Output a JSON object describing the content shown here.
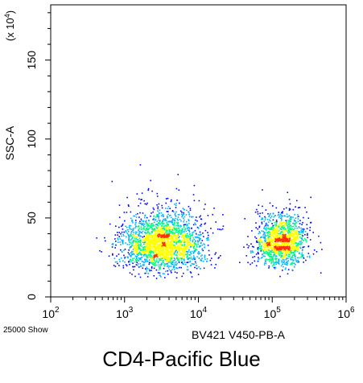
{
  "figure_caption": "CD4-Pacific Blue",
  "event_count_label": "25000 Show",
  "chart_data": {
    "type": "scatter",
    "subtype": "flow-cytometry density dot plot",
    "title": "",
    "xlabel": "BV421 V450-PB-A",
    "ylabel": "SSC-A",
    "y_multiplier_label": "(x 10",
    "y_multiplier_exponent": "4",
    "y_multiplier_close": ")",
    "x_scale": "log",
    "xlim": [
      100,
      1000000
    ],
    "x_ticks": [
      {
        "value": 100,
        "base": "10",
        "exp": "2"
      },
      {
        "value": 1000,
        "base": "10",
        "exp": "3"
      },
      {
        "value": 10000,
        "base": "10",
        "exp": "4"
      },
      {
        "value": 100000,
        "base": "10",
        "exp": "5"
      },
      {
        "value": 1000000,
        "base": "10",
        "exp": "6"
      }
    ],
    "y_scale": "linear",
    "ylim": [
      0,
      185
    ],
    "y_ticks": [
      {
        "value": 0,
        "label": "0"
      },
      {
        "value": 50,
        "label": "50"
      },
      {
        "value": 100,
        "label": "100"
      },
      {
        "value": 150,
        "label": "150"
      }
    ],
    "grid": false,
    "color_scale": [
      "#0000ff",
      "#00b4ff",
      "#00ff80",
      "#ffff00",
      "#ff3000"
    ],
    "populations": [
      {
        "x_center": 3200,
        "x_log_spread": 0.28,
        "y_center": 33,
        "y_spread": 8,
        "share": 0.62
      },
      {
        "x_center": 130000,
        "x_log_spread": 0.17,
        "y_center": 34,
        "y_spread": 7,
        "share": 0.38
      }
    ]
  }
}
